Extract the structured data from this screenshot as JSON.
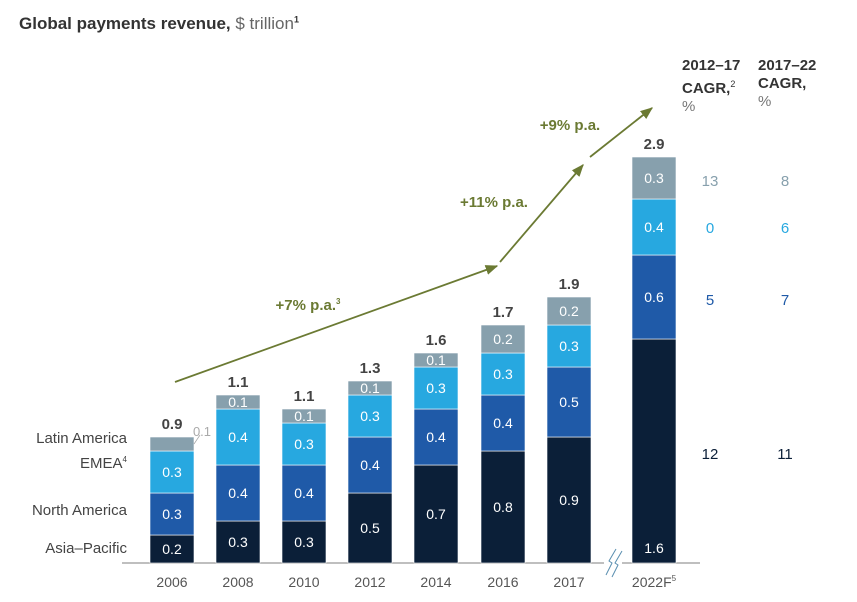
{
  "title": {
    "main": "Global payments revenue,",
    "unit": "$ trillion",
    "footnote": "1"
  },
  "cagr_headers": [
    {
      "line1": "2012–17",
      "line2": "CAGR,",
      "footnote": "2",
      "line3": "%"
    },
    {
      "line1": "2017–22",
      "line2": "CAGR,",
      "footnote": "",
      "line3": "%"
    }
  ],
  "colors": {
    "asia_pacific": "#0b1f38",
    "north_america": "#1f5aa8",
    "emea": "#27a8e0",
    "latin_america": "#87a0ad",
    "arrow": "#6b7a33",
    "axis": "#aaaaaa",
    "text": "#333333"
  },
  "chart_data": {
    "type": "bar",
    "stacked": true,
    "title": "Global payments revenue, $ trillion",
    "xlabel": "",
    "ylabel": "$ trillion",
    "ylim": [
      0,
      3.0
    ],
    "grid": false,
    "categories": [
      "2006",
      "2008",
      "2010",
      "2012",
      "2014",
      "2016",
      "2017",
      "2022F"
    ],
    "category_footnotes": [
      "",
      "",
      "",
      "",
      "",
      "",
      "",
      "5"
    ],
    "totals": [
      0.9,
      1.1,
      1.1,
      1.3,
      1.6,
      1.7,
      1.9,
      2.9
    ],
    "series": [
      {
        "name": "Asia–Pacific",
        "key": "asia_pacific",
        "footnote": "",
        "values": [
          0.2,
          0.3,
          0.3,
          0.5,
          0.7,
          0.8,
          0.9,
          1.6
        ],
        "cagr_2012_17": "12",
        "cagr_2017_22": "11"
      },
      {
        "name": "North America",
        "key": "north_america",
        "footnote": "",
        "values": [
          0.3,
          0.4,
          0.4,
          0.4,
          0.4,
          0.4,
          0.5,
          0.6
        ],
        "cagr_2012_17": "5",
        "cagr_2017_22": "7"
      },
      {
        "name": "EMEA",
        "key": "emea",
        "footnote": "4",
        "values": [
          0.3,
          0.4,
          0.3,
          0.3,
          0.3,
          0.3,
          0.3,
          0.4
        ],
        "cagr_2012_17": "0",
        "cagr_2017_22": "6"
      },
      {
        "name": "Latin America",
        "key": "latin_america",
        "footnote": "",
        "values": [
          0.1,
          0.1,
          0.1,
          0.1,
          0.1,
          0.2,
          0.2,
          0.3
        ],
        "cagr_2012_17": "13",
        "cagr_2017_22": "8"
      }
    ],
    "legend": "left",
    "axis_break_before": "2022F",
    "annotations": [
      {
        "text": "+7% p.a.",
        "footnote": "3",
        "from": "2006",
        "to": "2016"
      },
      {
        "text": "+11% p.a.",
        "footnote": "",
        "from": "2016",
        "to": "2017"
      },
      {
        "text": "+9% p.a.",
        "footnote": "",
        "from": "2017",
        "to": "2022F"
      }
    ],
    "outside_label_note": "2006 Latin America value 0.1 labeled outside bar"
  }
}
